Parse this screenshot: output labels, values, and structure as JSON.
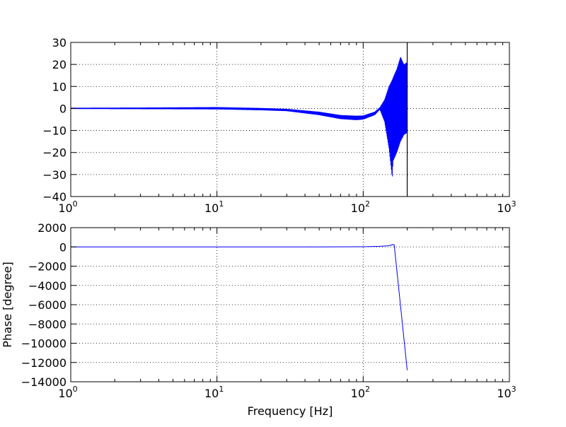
{
  "chart_data": [
    {
      "type": "line",
      "title": "",
      "xlabel": "",
      "ylabel": "",
      "xscale": "log",
      "xlim": [
        1,
        1000
      ],
      "ylim": [
        -40,
        30
      ],
      "grid": true,
      "xticks": [
        1,
        10,
        100,
        1000
      ],
      "xtick_labels": [
        {
          "base": "10",
          "exp": "0"
        },
        {
          "base": "10",
          "exp": "1"
        },
        {
          "base": "10",
          "exp": "2"
        },
        {
          "base": "10",
          "exp": "3"
        }
      ],
      "yticks": [
        "30",
        "20",
        "10",
        "0",
        "−10",
        "−20",
        "−30",
        "−40"
      ],
      "ytick_values": [
        30,
        20,
        10,
        0,
        -10,
        -20,
        -30,
        -40
      ],
      "series": [
        {
          "color": "#0000ff",
          "style": "oscillating band (envelope)",
          "freq": [
            1,
            3,
            10,
            20,
            30,
            50,
            70,
            90,
            100,
            120,
            130,
            140,
            150,
            158,
            160,
            170,
            180,
            190,
            200
          ],
          "upper": [
            0.3,
            0.4,
            0.6,
            0.2,
            -0.2,
            -1.5,
            -3,
            -3.3,
            -3.2,
            -1.5,
            0.5,
            4,
            10,
            13,
            14,
            18,
            23.5,
            20,
            21
          ],
          "lower": [
            -0.2,
            -0.3,
            -0.4,
            -0.8,
            -1.2,
            -3,
            -4.8,
            -5.3,
            -5,
            -3,
            -0.5,
            -6,
            -18,
            -31.5,
            -24,
            -20,
            -15,
            -12,
            -11
          ]
        }
      ],
      "vline": {
        "x": 200,
        "color": "#000000"
      }
    },
    {
      "type": "line",
      "title": "",
      "xlabel": "Frequency [Hz]",
      "ylabel": "Phase [degree]",
      "xscale": "log",
      "xlim": [
        1,
        1000
      ],
      "ylim": [
        -14000,
        2000
      ],
      "grid": true,
      "xticks": [
        1,
        10,
        100,
        1000
      ],
      "xtick_labels": [
        {
          "base": "10",
          "exp": "0"
        },
        {
          "base": "10",
          "exp": "1"
        },
        {
          "base": "10",
          "exp": "2"
        },
        {
          "base": "10",
          "exp": "3"
        }
      ],
      "yticks": [
        "2000",
        "0",
        "−2000",
        "−4000",
        "−6000",
        "−8000",
        "−10000",
        "−12000",
        "−14000"
      ],
      "ytick_values": [
        2000,
        0,
        -2000,
        -4000,
        -6000,
        -8000,
        -10000,
        -12000,
        -14000
      ],
      "series": [
        {
          "color": "#0000ff",
          "x": [
            1,
            10,
            50,
            100,
            130,
            150,
            160,
            163,
            200
          ],
          "y": [
            0,
            0,
            0,
            20,
            60,
            120,
            250,
            200,
            -12800
          ]
        }
      ]
    }
  ]
}
